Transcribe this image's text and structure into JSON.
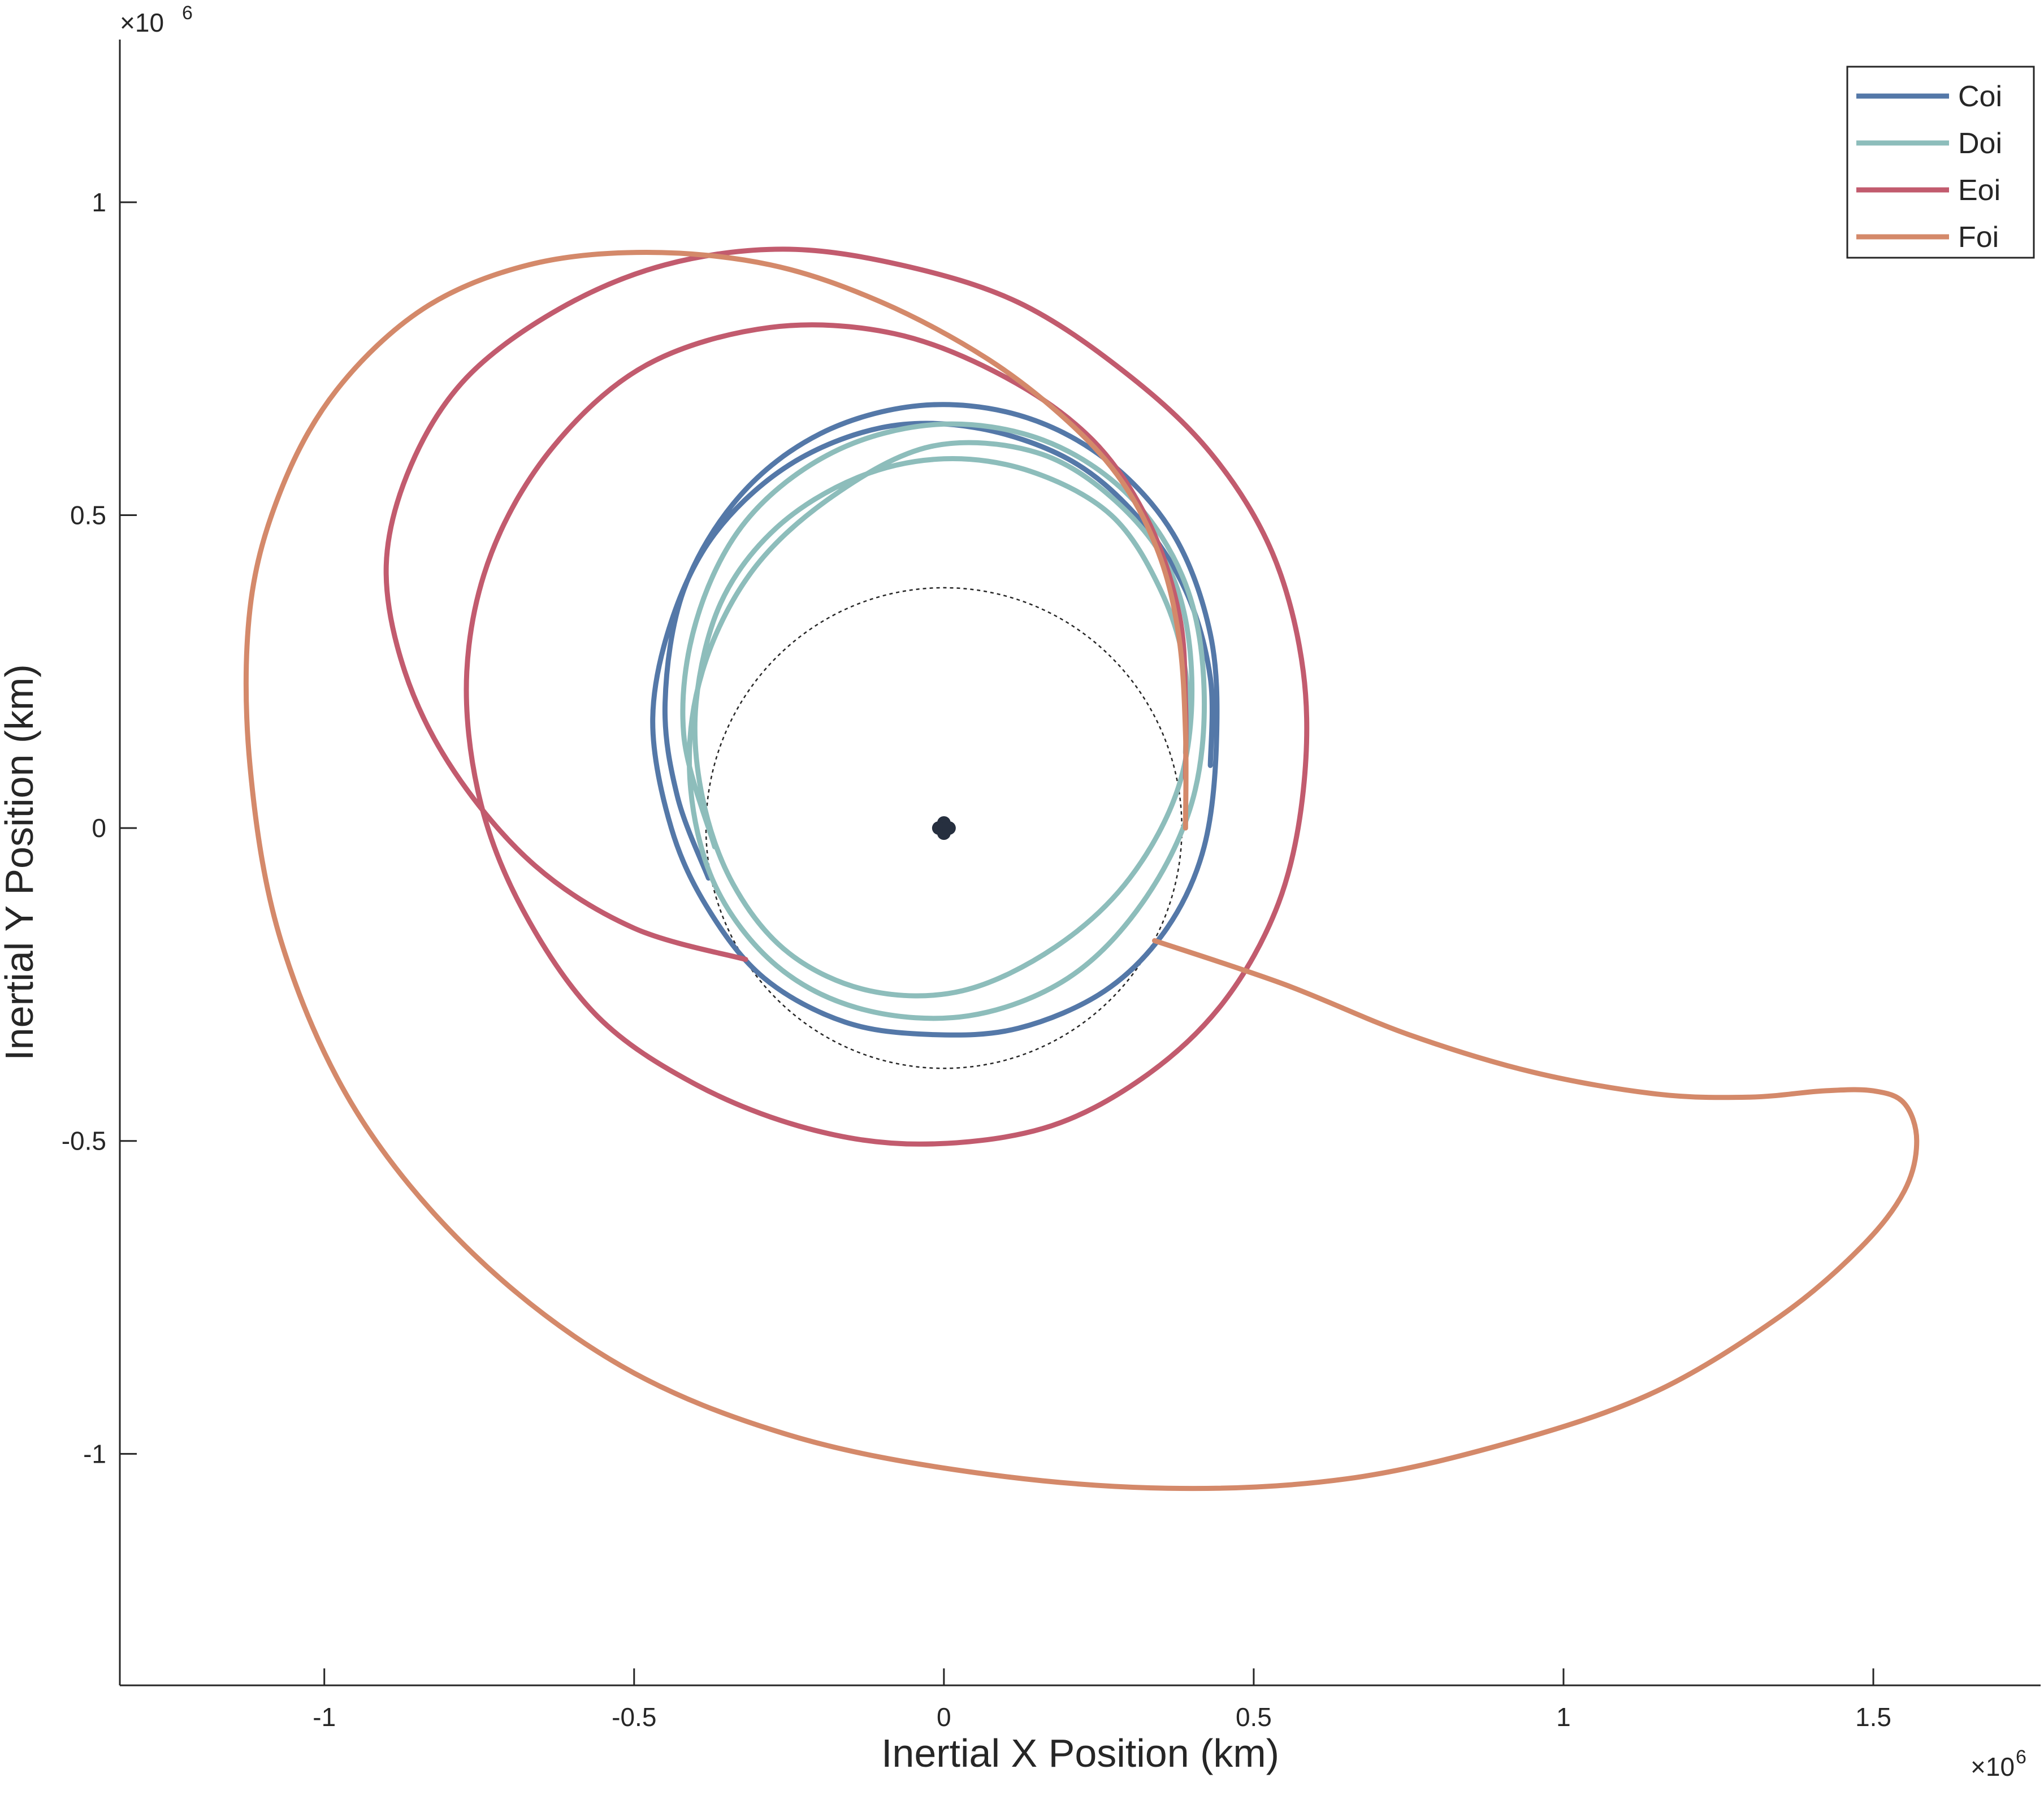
{
  "chart_data": {
    "type": "line",
    "title": "",
    "xlabel": "Inertial X Position (km)",
    "ylabel": "Inertial Y Position (km)",
    "x_exponent": {
      "base": "×10",
      "power": "6"
    },
    "y_exponent": {
      "base": "×10",
      "power": "6"
    },
    "xlim": [
      -1.33,
      1.77
    ],
    "ylim": [
      -1.37,
      1.26
    ],
    "x_ticks": [
      -1,
      -0.5,
      0,
      0.5,
      1,
      1.5
    ],
    "x_tick_labels": [
      "-1",
      "-0.5",
      "0",
      "0.5",
      "1",
      "1.5"
    ],
    "y_ticks": [
      -1,
      -0.5,
      0,
      0.5,
      1
    ],
    "y_tick_labels": [
      "-1",
      "-0.5",
      "0",
      "0.5",
      "1"
    ],
    "grid": false,
    "legend_position": "top-right",
    "series": [
      {
        "name": "Coi",
        "color": "#5478a8",
        "points": [
          [
            -0.38,
            -0.08
          ],
          [
            -0.43,
            0.05
          ],
          [
            -0.45,
            0.2
          ],
          [
            -0.42,
            0.38
          ],
          [
            -0.33,
            0.53
          ],
          [
            -0.2,
            0.63
          ],
          [
            -0.04,
            0.675
          ],
          [
            0.12,
            0.66
          ],
          [
            0.26,
            0.59
          ],
          [
            0.37,
            0.47
          ],
          [
            0.43,
            0.31
          ],
          [
            0.44,
            0.14
          ],
          [
            0.42,
            -0.03
          ],
          [
            0.36,
            -0.16
          ],
          [
            0.26,
            -0.26
          ],
          [
            0.12,
            -0.32
          ],
          [
            -0.02,
            -0.33
          ],
          [
            -0.16,
            -0.31
          ],
          [
            -0.29,
            -0.24
          ],
          [
            -0.38,
            -0.13
          ],
          [
            -0.44,
            0.0
          ],
          [
            -0.47,
            0.17
          ],
          [
            -0.44,
            0.33
          ],
          [
            -0.37,
            0.47
          ],
          [
            -0.25,
            0.58
          ],
          [
            -0.1,
            0.64
          ],
          [
            0.05,
            0.64
          ],
          [
            0.2,
            0.59
          ],
          [
            0.31,
            0.5
          ],
          [
            0.39,
            0.38
          ],
          [
            0.43,
            0.24
          ],
          [
            0.43,
            0.1
          ]
        ]
      },
      {
        "name": "Doi",
        "color": "#8dbdbb",
        "points": [
          [
            -0.37,
            -0.03
          ],
          [
            -0.42,
            0.15
          ],
          [
            -0.4,
            0.33
          ],
          [
            -0.32,
            0.49
          ],
          [
            -0.18,
            0.6
          ],
          [
            -0.01,
            0.645
          ],
          [
            0.16,
            0.62
          ],
          [
            0.3,
            0.53
          ],
          [
            0.39,
            0.39
          ],
          [
            0.42,
            0.22
          ],
          [
            0.4,
            0.04
          ],
          [
            0.32,
            -0.12
          ],
          [
            0.2,
            -0.24
          ],
          [
            0.04,
            -0.3
          ],
          [
            -0.13,
            -0.29
          ],
          [
            -0.27,
            -0.22
          ],
          [
            -0.37,
            -0.09
          ],
          [
            -0.41,
            0.08
          ],
          [
            -0.39,
            0.25
          ],
          [
            -0.31,
            0.41
          ],
          [
            -0.18,
            0.53
          ],
          [
            -0.02,
            0.61
          ],
          [
            0.15,
            0.6
          ],
          [
            0.28,
            0.52
          ],
          [
            0.37,
            0.4
          ],
          [
            0.4,
            0.24
          ],
          [
            0.38,
            0.07
          ],
          [
            0.3,
            -0.08
          ],
          [
            0.18,
            -0.19
          ],
          [
            0.03,
            -0.26
          ],
          [
            -0.12,
            -0.26
          ],
          [
            -0.25,
            -0.2
          ],
          [
            -0.34,
            -0.09
          ],
          [
            -0.39,
            0.05
          ],
          [
            -0.4,
            0.2
          ],
          [
            -0.36,
            0.36
          ],
          [
            -0.27,
            0.48
          ],
          [
            -0.14,
            0.56
          ],
          [
            0.0,
            0.59
          ],
          [
            0.14,
            0.57
          ],
          [
            0.27,
            0.5
          ],
          [
            0.35,
            0.38
          ],
          [
            0.39,
            0.25
          ],
          [
            0.39,
            0.12
          ]
        ]
      },
      {
        "name": "Eoi",
        "color": "#c25b6e",
        "points": [
          [
            -0.32,
            -0.21
          ],
          [
            -0.5,
            -0.16
          ],
          [
            -0.66,
            -0.06
          ],
          [
            -0.79,
            0.09
          ],
          [
            -0.87,
            0.25
          ],
          [
            -0.9,
            0.42
          ],
          [
            -0.86,
            0.58
          ],
          [
            -0.77,
            0.72
          ],
          [
            -0.62,
            0.83
          ],
          [
            -0.45,
            0.9
          ],
          [
            -0.26,
            0.925
          ],
          [
            -0.07,
            0.9
          ],
          [
            0.12,
            0.84
          ],
          [
            0.29,
            0.73
          ],
          [
            0.43,
            0.6
          ],
          [
            0.53,
            0.44
          ],
          [
            0.58,
            0.25
          ],
          [
            0.58,
            0.06
          ],
          [
            0.54,
            -0.12
          ],
          [
            0.45,
            -0.28
          ],
          [
            0.32,
            -0.4
          ],
          [
            0.16,
            -0.48
          ],
          [
            -0.04,
            -0.505
          ],
          [
            -0.22,
            -0.48
          ],
          [
            -0.4,
            -0.41
          ],
          [
            -0.56,
            -0.3
          ],
          [
            -0.68,
            -0.13
          ],
          [
            -0.75,
            0.05
          ],
          [
            -0.77,
            0.25
          ],
          [
            -0.73,
            0.44
          ],
          [
            -0.63,
            0.61
          ],
          [
            -0.48,
            0.74
          ],
          [
            -0.28,
            0.8
          ],
          [
            -0.08,
            0.79
          ],
          [
            0.1,
            0.72
          ],
          [
            0.24,
            0.62
          ],
          [
            0.33,
            0.49
          ],
          [
            0.38,
            0.34
          ],
          [
            0.39,
            0.2
          ],
          [
            0.39,
            0.08
          ]
        ]
      },
      {
        "name": "Foi",
        "color": "#d4896a",
        "points": [
          [
            0.34,
            -0.18
          ],
          [
            0.55,
            -0.25
          ],
          [
            0.75,
            -0.33
          ],
          [
            0.95,
            -0.39
          ],
          [
            1.15,
            -0.425
          ],
          [
            1.3,
            -0.43
          ],
          [
            1.42,
            -0.42
          ],
          [
            1.5,
            -0.42
          ],
          [
            1.55,
            -0.44
          ],
          [
            1.57,
            -0.5
          ],
          [
            1.55,
            -0.58
          ],
          [
            1.48,
            -0.67
          ],
          [
            1.35,
            -0.78
          ],
          [
            1.15,
            -0.9
          ],
          [
            0.92,
            -0.98
          ],
          [
            0.65,
            -1.04
          ],
          [
            0.36,
            -1.055
          ],
          [
            0.05,
            -1.03
          ],
          [
            -0.25,
            -0.97
          ],
          [
            -0.52,
            -0.86
          ],
          [
            -0.76,
            -0.68
          ],
          [
            -0.95,
            -0.45
          ],
          [
            -1.07,
            -0.18
          ],
          [
            -1.12,
            0.1
          ],
          [
            -1.12,
            0.35
          ],
          [
            -1.07,
            0.54
          ],
          [
            -0.98,
            0.7
          ],
          [
            -0.84,
            0.83
          ],
          [
            -0.67,
            0.9
          ],
          [
            -0.48,
            0.92
          ],
          [
            -0.28,
            0.9
          ],
          [
            -0.1,
            0.84
          ],
          [
            0.07,
            0.75
          ],
          [
            0.2,
            0.65
          ],
          [
            0.29,
            0.55
          ],
          [
            0.35,
            0.43
          ],
          [
            0.38,
            0.3
          ],
          [
            0.39,
            0.15
          ],
          [
            0.39,
            0.0
          ]
        ]
      },
      {
        "name": "",
        "color": "#262626",
        "style": "dotted",
        "circle": {
          "cx": 0,
          "cy": 0,
          "r": 0.384
        }
      }
    ],
    "central_body": {
      "x": 0,
      "y": 0,
      "color": "#262f3f"
    }
  }
}
